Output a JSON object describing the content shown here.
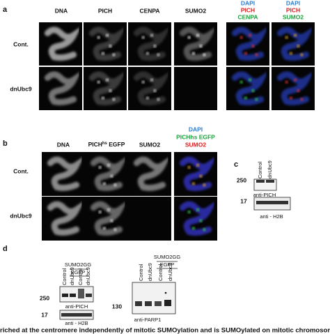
{
  "panel_a": {
    "label": "a",
    "columns": [
      "DNA",
      "PICH",
      "CENPA",
      "SUMO2"
    ],
    "merge_1": [
      "DAPI",
      "PICH",
      "CENPA"
    ],
    "merge_2": [
      "DAPI",
      "PICH",
      "SUMO2"
    ],
    "rows": [
      "Cont.",
      "dnUbc9"
    ]
  },
  "panel_b": {
    "label": "b",
    "col_dna": "DNA",
    "col_pich": {
      "main": "PICH",
      "sup": "hs",
      "rest": " EGFP"
    },
    "col_sumo": "SUMO2",
    "merge": [
      "DAPI",
      "PICHhs EGFP",
      "SUMO2"
    ],
    "rows": [
      "Cont.",
      "dnUbc9"
    ]
  },
  "panel_c": {
    "label": "c",
    "lanes": [
      "Control",
      "dnUbc9"
    ],
    "marker_top": "250",
    "blot_top": "anti-PICH",
    "marker_bottom": "17",
    "blot_bottom": "anti - H2B"
  },
  "panel_d": {
    "label": "d",
    "left": {
      "group": "SUMO2GG",
      "group_sub": "EGFP",
      "lanes": [
        "Control",
        "dnUbc9",
        "Control",
        "dnUbc9"
      ],
      "marker_top": "250",
      "blot_top": "anti-PICH",
      "marker_bottom": "17",
      "blot_bottom": "anti - H2B"
    },
    "right": {
      "group": "SUMO2GG",
      "group_sub": "EGFP",
      "lanes": [
        "Control",
        "dnUbc9",
        "Control",
        "dnUbc9"
      ],
      "marker": "130",
      "blot": "anti-PARP1"
    }
  },
  "caption": "riched at the centromere independently of mitotic SUMOylation and is SUMOylated on mitotic chromosome"
}
